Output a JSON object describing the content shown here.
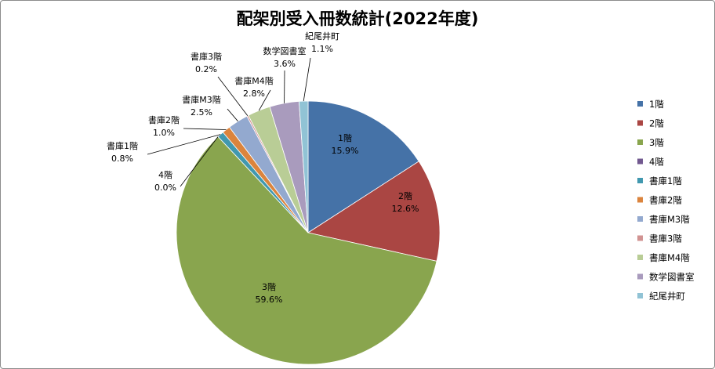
{
  "chart_data": {
    "type": "pie",
    "title": "配架別受入冊数統計(2022年度)",
    "legend_position": "right",
    "slices": [
      {
        "label": "1階",
        "percent_label": "15.9%",
        "value": 15.9,
        "color": "#4572a7"
      },
      {
        "label": "2階",
        "percent_label": "12.6%",
        "value": 12.6,
        "color": "#aa4643"
      },
      {
        "label": "3階",
        "percent_label": "59.6%",
        "value": 59.6,
        "color": "#89a54e"
      },
      {
        "label": "4階",
        "percent_label": "0.0%",
        "value": 0.0,
        "color": "#71588f"
      },
      {
        "label": "書庫1階",
        "percent_label": "0.8%",
        "value": 0.8,
        "color": "#4198af"
      },
      {
        "label": "書庫2階",
        "percent_label": "1.0%",
        "value": 1.0,
        "color": "#db843d"
      },
      {
        "label": "書庫M3階",
        "percent_label": "2.5%",
        "value": 2.5,
        "color": "#93a9cf"
      },
      {
        "label": "書庫3階",
        "percent_label": "0.2%",
        "value": 0.2,
        "color": "#d19392"
      },
      {
        "label": "書庫M4階",
        "percent_label": "2.8%",
        "value": 2.8,
        "color": "#b9cd96"
      },
      {
        "label": "数学図書室",
        "percent_label": "3.6%",
        "value": 3.6,
        "color": "#a99bbd"
      },
      {
        "label": "紀尾井町",
        "percent_label": "1.1%",
        "value": 1.1,
        "color": "#91c3d5"
      }
    ]
  }
}
